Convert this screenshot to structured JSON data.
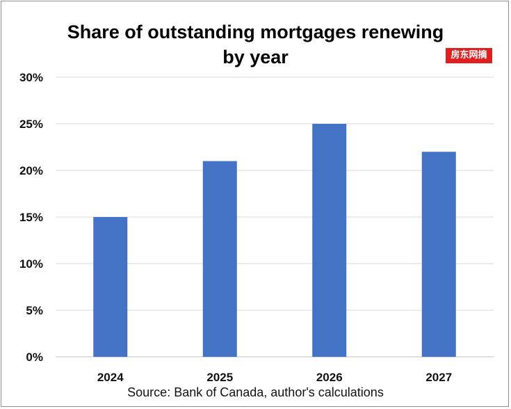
{
  "chart_data": {
    "type": "bar",
    "title_lines": [
      "Share of outstanding mortgages renewing",
      "by year"
    ],
    "categories": [
      "2024",
      "2025",
      "2026",
      "2027"
    ],
    "values": [
      15,
      21,
      25,
      22
    ],
    "y_ticks": [
      "0%",
      "5%",
      "10%",
      "15%",
      "20%",
      "25%",
      "30%"
    ],
    "ylim": [
      0,
      30
    ],
    "grid": true,
    "bar_color": "#4472c4",
    "source": "Source: Bank of Canada, author's calculations"
  },
  "watermark": "房东网摘"
}
